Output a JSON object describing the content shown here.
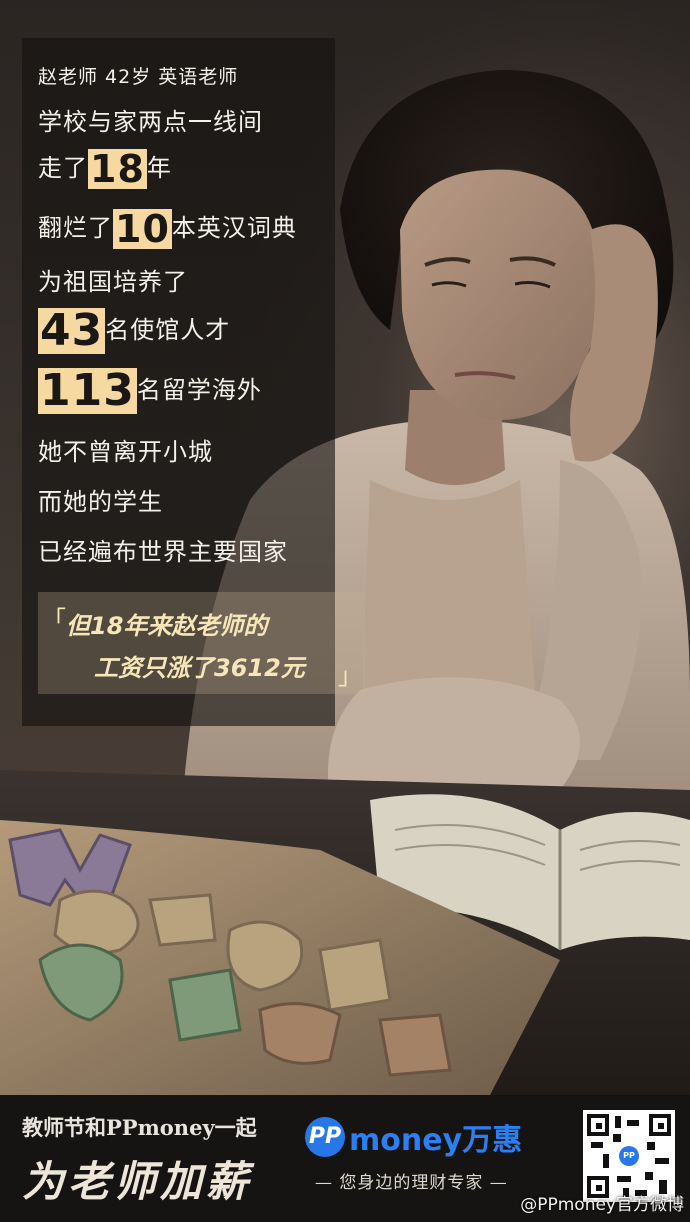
{
  "panel_lines": {
    "intro": "赵老师 42岁 英语老师",
    "l2": "学校与家两点一线间",
    "l3_pre": "走了",
    "l3_num": "18",
    "l3_post": "年",
    "l4_pre": "翻烂了",
    "l4_num": "10",
    "l4_post": "本英汉词典",
    "l5": "为祖国培养了",
    "l6_num": "43",
    "l6_post": "名使馆人才",
    "l7_num": "113",
    "l7_post": "名留学海外",
    "l8": "她不曾离开小城",
    "l9": "而她的学生",
    "l10": "已经遍布世界主要国家"
  },
  "quote": {
    "open": "「",
    "line1": "但18年来赵老师的",
    "line2": "工资只涨了3612元",
    "close": "」"
  },
  "footer": {
    "tagline": "教师节和PPmoney一起",
    "headline": "为老师加薪",
    "logo_badge": "PP",
    "logo_text": "money万惠",
    "slogan": "— 您身边的理财专家 —",
    "qr_badge": "PP"
  },
  "watermark": "@PPmoney官方微博",
  "colors": {
    "highlight": "#f6d9a0",
    "quote_text": "#f7e6b8",
    "brand_blue": "#2877e8"
  }
}
